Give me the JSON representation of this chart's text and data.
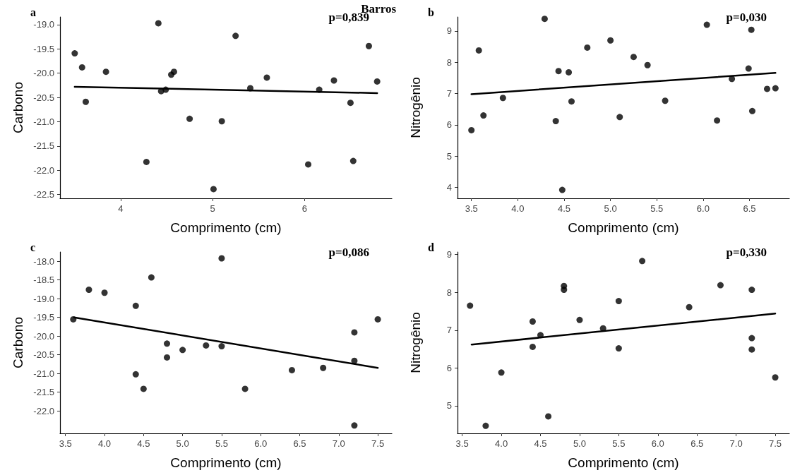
{
  "chart_data": [
    {
      "type": "scatter",
      "title": "a",
      "subtitle": "Barros",
      "xlabel": "Comprimento (cm)",
      "ylabel": "Carbono",
      "annotations": [
        "p=0,839"
      ],
      "xlim": [
        3.34,
        6.95
      ],
      "ylim": [
        -22.58,
        -18.84
      ],
      "xticks": [
        4,
        5,
        6
      ],
      "yticks": [
        {
          "value": -22.5,
          "label": "-22.5"
        },
        {
          "value": -22,
          "label": "-22.0"
        },
        {
          "value": -21.5,
          "label": "-21.5"
        },
        {
          "value": -21,
          "label": "-21.0"
        },
        {
          "value": -20.5,
          "label": "-20.5"
        },
        {
          "value": -20,
          "label": "-20.0"
        },
        {
          "value": -19.5,
          "label": "-19.5"
        },
        {
          "value": -19,
          "label": "-19.0"
        }
      ],
      "grid": false,
      "marker": "circle",
      "series": [
        {
          "color": "#000000",
          "x": [
            3.5,
            3.58,
            3.62,
            3.84,
            4.28,
            4.41,
            4.44,
            4.49,
            4.55,
            4.58,
            4.75,
            5.01,
            5.1,
            5.25,
            5.41,
            5.59,
            6.04,
            6.16,
            6.32,
            6.5,
            6.53,
            6.7,
            6.79
          ],
          "values": [
            -19.59,
            -19.88,
            -20.59,
            -19.97,
            -21.83,
            -18.97,
            -20.37,
            -20.34,
            -20.03,
            -19.97,
            -20.94,
            -22.39,
            -20.99,
            -19.23,
            -20.31,
            -20.09,
            -21.88,
            -20.34,
            -20.15,
            -20.61,
            -21.81,
            -19.44,
            -20.17
          ]
        },
        {
          "type": "line",
          "color": "#000000",
          "marker": "none",
          "line_style": "solid",
          "x": [
            3.5,
            6.79
          ],
          "values": [
            -20.28,
            -20.41
          ]
        }
      ]
    },
    {
      "type": "scatter",
      "title": "b",
      "xlabel": "Comprimento (cm)",
      "ylabel": "Nitrogênio",
      "annotations": [
        "p=0,030"
      ],
      "xlim": [
        3.35,
        6.93
      ],
      "ylim": [
        3.65,
        9.45
      ],
      "xticks": [
        {
          "value": 3.5,
          "label": "3.5"
        },
        {
          "value": 4,
          "label": "4.0"
        },
        {
          "value": 4.5,
          "label": "4.5"
        },
        {
          "value": 5,
          "label": "5.0"
        },
        {
          "value": 5.5,
          "label": "5.5"
        },
        {
          "value": 6,
          "label": "6.0"
        },
        {
          "value": 6.5,
          "label": "6.5"
        }
      ],
      "yticks": [
        4,
        5,
        6,
        7,
        8,
        9
      ],
      "grid": false,
      "marker": "circle",
      "series": [
        {
          "color": "#000000",
          "x": [
            3.5,
            3.58,
            3.63,
            3.84,
            4.29,
            4.41,
            4.44,
            4.55,
            4.58,
            4.48,
            4.75,
            5.0,
            5.1,
            5.25,
            5.4,
            5.59,
            6.04,
            6.15,
            6.31,
            6.49,
            6.52,
            6.53,
            6.69,
            6.78
          ],
          "values": [
            5.83,
            8.38,
            6.3,
            6.86,
            9.39,
            6.12,
            7.72,
            7.68,
            6.75,
            3.92,
            8.47,
            8.7,
            6.25,
            8.17,
            7.91,
            6.77,
            9.2,
            6.14,
            7.47,
            7.8,
            9.04,
            6.44,
            7.15,
            7.17
          ]
        },
        {
          "type": "line",
          "color": "#000000",
          "marker": "none",
          "line_style": "solid",
          "x": [
            3.5,
            6.78
          ],
          "values": [
            6.98,
            7.66
          ]
        }
      ]
    },
    {
      "type": "scatter",
      "title": "c",
      "xlabel": "Comprimento (cm)",
      "ylabel": "Carbono",
      "annotations": [
        "p=0,086"
      ],
      "xlim": [
        3.43,
        7.68
      ],
      "ylim": [
        -22.6,
        -17.75
      ],
      "xticks": [
        {
          "value": 3.5,
          "label": "3.5"
        },
        {
          "value": 4,
          "label": "4.0"
        },
        {
          "value": 4.5,
          "label": "4.5"
        },
        {
          "value": 5,
          "label": "5.0"
        },
        {
          "value": 5.5,
          "label": "5.5"
        },
        {
          "value": 6,
          "label": "6.0"
        },
        {
          "value": 6.5,
          "label": "6.5"
        },
        {
          "value": 7,
          "label": "7.0"
        },
        {
          "value": 7.5,
          "label": "7.5"
        }
      ],
      "yticks": [
        {
          "value": -22,
          "label": "-22.0"
        },
        {
          "value": -21.5,
          "label": "-21.5"
        },
        {
          "value": -21,
          "label": "-21.0"
        },
        {
          "value": -20.5,
          "label": "-20.5"
        },
        {
          "value": -20,
          "label": "-20.0"
        },
        {
          "value": -19.5,
          "label": "-19.5"
        },
        {
          "value": -19,
          "label": "-19.0"
        },
        {
          "value": -18.5,
          "label": "-18.5"
        },
        {
          "value": -18,
          "label": "-18.0"
        }
      ],
      "grid": false,
      "marker": "circle",
      "series": [
        {
          "color": "#000000",
          "x": [
            3.6,
            3.8,
            4.0,
            4.6,
            4.4,
            4.4,
            4.5,
            4.8,
            4.8,
            5.0,
            5.3,
            5.5,
            5.5,
            5.8,
            6.4,
            6.8,
            7.2,
            7.2,
            7.2,
            7.5
          ],
          "values": [
            -19.55,
            -18.76,
            -18.84,
            -18.43,
            -19.19,
            -21.02,
            -21.41,
            -20.2,
            -20.57,
            -20.37,
            -20.25,
            -17.92,
            -20.27,
            -21.41,
            -20.91,
            -20.85,
            -19.9,
            -20.66,
            -22.39,
            -19.55
          ]
        },
        {
          "type": "line",
          "color": "#000000",
          "marker": "none",
          "line_style": "solid",
          "x": [
            3.61,
            7.5
          ],
          "values": [
            -19.5,
            -20.85
          ]
        }
      ]
    },
    {
      "type": "scatter",
      "title": "d",
      "xlabel": "Comprimento (cm)",
      "ylabel": "Nitrogênio",
      "annotations": [
        "p=0,330"
      ],
      "xlim": [
        3.44,
        7.68
      ],
      "ylim": [
        4.27,
        9.07
      ],
      "xticks": [
        {
          "value": 3.5,
          "label": "3.5"
        },
        {
          "value": 4,
          "label": "4.0"
        },
        {
          "value": 4.5,
          "label": "4.5"
        },
        {
          "value": 5,
          "label": "5.0"
        },
        {
          "value": 5.5,
          "label": "5.5"
        },
        {
          "value": 6,
          "label": "6.0"
        },
        {
          "value": 6.5,
          "label": "6.5"
        },
        {
          "value": 7,
          "label": "7.0"
        },
        {
          "value": 7.5,
          "label": "7.5"
        }
      ],
      "yticks": [
        5,
        6,
        7,
        8,
        9
      ],
      "grid": false,
      "marker": "circle",
      "series": [
        {
          "color": "#000000",
          "x": [
            3.6,
            3.8,
            4.0,
            4.4,
            4.4,
            4.5,
            4.6,
            4.8,
            4.8,
            5.0,
            5.3,
            5.5,
            5.5,
            5.8,
            6.4,
            6.8,
            7.2,
            7.2,
            7.2,
            7.5
          ],
          "values": [
            7.65,
            4.47,
            5.88,
            7.23,
            6.56,
            6.87,
            4.72,
            8.17,
            8.07,
            7.27,
            7.05,
            7.77,
            6.52,
            8.83,
            7.61,
            8.19,
            8.07,
            6.79,
            6.49,
            5.75
          ]
        },
        {
          "type": "line",
          "color": "#000000",
          "marker": "none",
          "line_style": "solid",
          "x": [
            3.62,
            7.5
          ],
          "values": [
            6.62,
            7.44
          ]
        }
      ]
    }
  ]
}
